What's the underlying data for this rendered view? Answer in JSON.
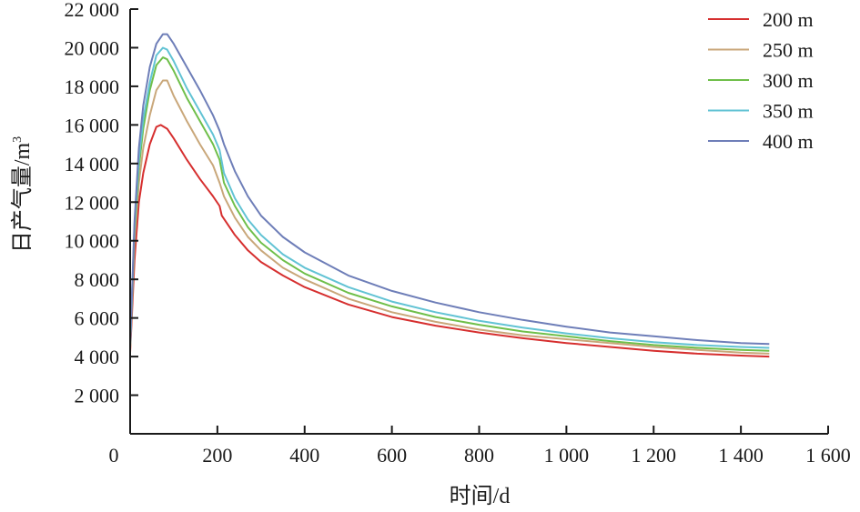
{
  "chart_data": {
    "type": "line",
    "title": "",
    "xlabel": "时间/d",
    "ylabel": "日产气量/m",
    "ylabel_superscript": "3",
    "xlim": [
      0,
      1600
    ],
    "ylim": [
      0,
      22000
    ],
    "x_ticks": [
      0,
      200,
      400,
      600,
      800,
      1000,
      1200,
      1400,
      1600
    ],
    "x_tick_labels": [
      "0",
      "200",
      "400",
      "600",
      "800",
      "1 000",
      "1 200",
      "1 400",
      "1 600"
    ],
    "y_ticks": [
      2000,
      4000,
      6000,
      8000,
      10000,
      12000,
      14000,
      16000,
      18000,
      20000,
      22000
    ],
    "y_tick_labels": [
      "2 000",
      "4 000",
      "6 000",
      "8 000",
      "10 000",
      "12 000",
      "14 000",
      "16 000",
      "18 000",
      "20 000",
      "22 000"
    ],
    "grid": false,
    "legend_position": "top-right",
    "series": [
      {
        "name": "200 m",
        "color": "#d62f2f",
        "points": [
          [
            0,
            4200
          ],
          [
            10,
            9000
          ],
          [
            20,
            12000
          ],
          [
            30,
            13500
          ],
          [
            45,
            15000
          ],
          [
            60,
            15900
          ],
          [
            70,
            16000
          ],
          [
            85,
            15800
          ],
          [
            100,
            15300
          ],
          [
            130,
            14200
          ],
          [
            160,
            13200
          ],
          [
            190,
            12300
          ],
          [
            205,
            11800
          ],
          [
            210,
            11300
          ],
          [
            240,
            10300
          ],
          [
            270,
            9500
          ],
          [
            300,
            8900
          ],
          [
            350,
            8200
          ],
          [
            400,
            7600
          ],
          [
            500,
            6700
          ],
          [
            600,
            6050
          ],
          [
            700,
            5600
          ],
          [
            800,
            5250
          ],
          [
            900,
            4950
          ],
          [
            1000,
            4700
          ],
          [
            1100,
            4500
          ],
          [
            1200,
            4300
          ],
          [
            1300,
            4150
          ],
          [
            1400,
            4050
          ],
          [
            1465,
            4000
          ]
        ]
      },
      {
        "name": "250 m",
        "color": "#c9a77a",
        "points": [
          [
            0,
            4400
          ],
          [
            10,
            10000
          ],
          [
            20,
            13000
          ],
          [
            30,
            14800
          ],
          [
            45,
            16500
          ],
          [
            60,
            17800
          ],
          [
            75,
            18300
          ],
          [
            85,
            18300
          ],
          [
            100,
            17500
          ],
          [
            130,
            16200
          ],
          [
            160,
            15000
          ],
          [
            190,
            13900
          ],
          [
            205,
            13000
          ],
          [
            215,
            12300
          ],
          [
            240,
            11200
          ],
          [
            270,
            10200
          ],
          [
            300,
            9500
          ],
          [
            350,
            8600
          ],
          [
            400,
            8000
          ],
          [
            500,
            7000
          ],
          [
            600,
            6300
          ],
          [
            700,
            5800
          ],
          [
            800,
            5400
          ],
          [
            900,
            5100
          ],
          [
            1000,
            4900
          ],
          [
            1100,
            4700
          ],
          [
            1200,
            4500
          ],
          [
            1300,
            4350
          ],
          [
            1400,
            4200
          ],
          [
            1465,
            4150
          ]
        ]
      },
      {
        "name": "300 m",
        "color": "#6fbf4a",
        "points": [
          [
            0,
            4500
          ],
          [
            10,
            10500
          ],
          [
            20,
            13800
          ],
          [
            30,
            15800
          ],
          [
            45,
            17800
          ],
          [
            60,
            19100
          ],
          [
            75,
            19500
          ],
          [
            85,
            19400
          ],
          [
            100,
            18800
          ],
          [
            130,
            17400
          ],
          [
            160,
            16200
          ],
          [
            190,
            15000
          ],
          [
            205,
            14200
          ],
          [
            215,
            13000
          ],
          [
            240,
            11800
          ],
          [
            270,
            10700
          ],
          [
            300,
            9900
          ],
          [
            350,
            9000
          ],
          [
            400,
            8300
          ],
          [
            500,
            7300
          ],
          [
            600,
            6600
          ],
          [
            700,
            6050
          ],
          [
            800,
            5650
          ],
          [
            900,
            5300
          ],
          [
            1000,
            5050
          ],
          [
            1100,
            4800
          ],
          [
            1200,
            4600
          ],
          [
            1300,
            4450
          ],
          [
            1400,
            4350
          ],
          [
            1465,
            4300
          ]
        ]
      },
      {
        "name": "350 m",
        "color": "#62c3d4",
        "points": [
          [
            0,
            4500
          ],
          [
            10,
            10800
          ],
          [
            20,
            14200
          ],
          [
            30,
            16300
          ],
          [
            45,
            18200
          ],
          [
            60,
            19600
          ],
          [
            75,
            20000
          ],
          [
            85,
            19900
          ],
          [
            100,
            19300
          ],
          [
            130,
            17900
          ],
          [
            160,
            16700
          ],
          [
            190,
            15500
          ],
          [
            205,
            14700
          ],
          [
            215,
            13500
          ],
          [
            240,
            12200
          ],
          [
            270,
            11100
          ],
          [
            300,
            10300
          ],
          [
            350,
            9300
          ],
          [
            400,
            8600
          ],
          [
            500,
            7600
          ],
          [
            600,
            6850
          ],
          [
            700,
            6300
          ],
          [
            800,
            5850
          ],
          [
            900,
            5500
          ],
          [
            1000,
            5200
          ],
          [
            1100,
            4950
          ],
          [
            1200,
            4750
          ],
          [
            1300,
            4600
          ],
          [
            1400,
            4500
          ],
          [
            1465,
            4450
          ]
        ]
      },
      {
        "name": "400 m",
        "color": "#6e7eb8",
        "points": [
          [
            0,
            4600
          ],
          [
            10,
            11000
          ],
          [
            20,
            14800
          ],
          [
            30,
            17000
          ],
          [
            45,
            19000
          ],
          [
            60,
            20200
          ],
          [
            75,
            20700
          ],
          [
            85,
            20700
          ],
          [
            100,
            20200
          ],
          [
            130,
            19000
          ],
          [
            160,
            17800
          ],
          [
            190,
            16500
          ],
          [
            205,
            15700
          ],
          [
            215,
            15000
          ],
          [
            240,
            13600
          ],
          [
            270,
            12300
          ],
          [
            300,
            11300
          ],
          [
            350,
            10200
          ],
          [
            400,
            9400
          ],
          [
            500,
            8200
          ],
          [
            600,
            7400
          ],
          [
            700,
            6800
          ],
          [
            800,
            6300
          ],
          [
            900,
            5900
          ],
          [
            1000,
            5550
          ],
          [
            1100,
            5250
          ],
          [
            1200,
            5050
          ],
          [
            1300,
            4850
          ],
          [
            1400,
            4700
          ],
          [
            1465,
            4650
          ]
        ]
      }
    ]
  }
}
